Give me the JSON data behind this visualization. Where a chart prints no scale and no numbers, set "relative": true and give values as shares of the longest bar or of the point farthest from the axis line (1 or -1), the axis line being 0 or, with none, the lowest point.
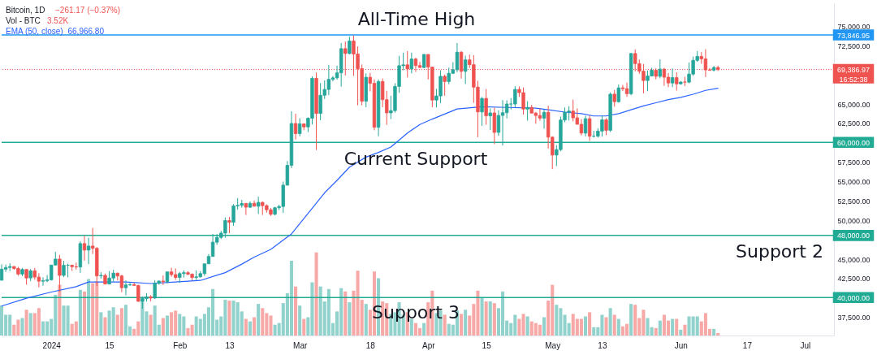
{
  "chart_data": [
    {
      "type": "candlestick",
      "title": "Bitcoin, 1D",
      "subtitle": "−261.17 (−0.37%)",
      "legend": "top left",
      "x": [
        "2023-12-20",
        "2023-12-21",
        "2023-12-22",
        "2023-12-23",
        "2023-12-24",
        "2023-12-25",
        "2023-12-26",
        "2023-12-27",
        "2023-12-28",
        "2023-12-29",
        "2023-12-30",
        "2023-12-31",
        "2024-01-01",
        "2024-01-02",
        "2024-01-03",
        "2024-01-04",
        "2024-01-05",
        "2024-01-06",
        "2024-01-07",
        "2024-01-08",
        "2024-01-09",
        "2024-01-10",
        "2024-01-11",
        "2024-01-12",
        "2024-01-13",
        "2024-01-14",
        "2024-01-15",
        "2024-01-16",
        "2024-01-17",
        "2024-01-18",
        "2024-01-19",
        "2024-01-20",
        "2024-01-21",
        "2024-01-22",
        "2024-01-23",
        "2024-01-24",
        "2024-01-25",
        "2024-01-26",
        "2024-01-27",
        "2024-01-28",
        "2024-01-29",
        "2024-01-30",
        "2024-01-31",
        "2024-02-01",
        "2024-02-02",
        "2024-02-03",
        "2024-02-04",
        "2024-02-05",
        "2024-02-06",
        "2024-02-07",
        "2024-02-08",
        "2024-02-09",
        "2024-02-10",
        "2024-02-11",
        "2024-02-12",
        "2024-02-13",
        "2024-02-14",
        "2024-02-15",
        "2024-02-16",
        "2024-02-17",
        "2024-02-18",
        "2024-02-19",
        "2024-02-20",
        "2024-02-21",
        "2024-02-22",
        "2024-02-23",
        "2024-02-24",
        "2024-02-25",
        "2024-02-26",
        "2024-02-27",
        "2024-02-28",
        "2024-02-29",
        "2024-03-01",
        "2024-03-02",
        "2024-03-03",
        "2024-03-04",
        "2024-03-05",
        "2024-03-06",
        "2024-03-07",
        "2024-03-08",
        "2024-03-09",
        "2024-03-10",
        "2024-03-11",
        "2024-03-12",
        "2024-03-13",
        "2024-03-14",
        "2024-03-15",
        "2024-03-16",
        "2024-03-17",
        "2024-03-18",
        "2024-03-19",
        "2024-03-20",
        "2024-03-21",
        "2024-03-22",
        "2024-03-23",
        "2024-03-24",
        "2024-03-25",
        "2024-03-26",
        "2024-03-27",
        "2024-03-28",
        "2024-03-29",
        "2024-03-30",
        "2024-03-31",
        "2024-04-01",
        "2024-04-02",
        "2024-04-03",
        "2024-04-04",
        "2024-04-05",
        "2024-04-06",
        "2024-04-07",
        "2024-04-08",
        "2024-04-09",
        "2024-04-10",
        "2024-04-11",
        "2024-04-12",
        "2024-04-13",
        "2024-04-14",
        "2024-04-15",
        "2024-04-16",
        "2024-04-17",
        "2024-04-18",
        "2024-04-19",
        "2024-04-20",
        "2024-04-21",
        "2024-04-22",
        "2024-04-23",
        "2024-04-24",
        "2024-04-25",
        "2024-04-26",
        "2024-04-27",
        "2024-04-28",
        "2024-04-29",
        "2024-04-30",
        "2024-05-01",
        "2024-05-02",
        "2024-05-03",
        "2024-05-04",
        "2024-05-05",
        "2024-05-06",
        "2024-05-07",
        "2024-05-08",
        "2024-05-09",
        "2024-05-10",
        "2024-05-11",
        "2024-05-12",
        "2024-05-13",
        "2024-05-14",
        "2024-05-15",
        "2024-05-16",
        "2024-05-17",
        "2024-05-18",
        "2024-05-19",
        "2024-05-20",
        "2024-05-21",
        "2024-05-22",
        "2024-05-23",
        "2024-05-24",
        "2024-05-25",
        "2024-05-26",
        "2024-05-27",
        "2024-05-28",
        "2024-05-29",
        "2024-05-30",
        "2024-05-31",
        "2024-06-01",
        "2024-06-02",
        "2024-06-03",
        "2024-06-04",
        "2024-06-05",
        "2024-06-06",
        "2024-06-07",
        "2024-06-08",
        "2024-06-09",
        "2024-06-10"
      ],
      "ohlc": [
        [
          42230,
          44280,
          42180,
          43650
        ],
        [
          43650,
          44240,
          43290,
          43870
        ],
        [
          43870,
          44400,
          43400,
          43990
        ],
        [
          43990,
          44040,
          43580,
          43740
        ],
        [
          43740,
          43950,
          42800,
          43020
        ],
        [
          43020,
          43800,
          42760,
          43610
        ],
        [
          43610,
          43650,
          41650,
          42520
        ],
        [
          42520,
          43680,
          42100,
          43440
        ],
        [
          43440,
          43800,
          42300,
          42630
        ],
        [
          42630,
          43130,
          41300,
          42100
        ],
        [
          42100,
          42600,
          41520,
          42160
        ],
        [
          42160,
          42900,
          41970,
          42280
        ],
        [
          42280,
          44190,
          42180,
          44180
        ],
        [
          44180,
          45900,
          44150,
          44950
        ],
        [
          44950,
          45500,
          40750,
          42850
        ],
        [
          42850,
          44730,
          42630,
          44150
        ],
        [
          44150,
          44350,
          42600,
          44160
        ],
        [
          44160,
          44230,
          43420,
          43970
        ],
        [
          43970,
          44500,
          43600,
          43930
        ],
        [
          43930,
          47250,
          43180,
          46950
        ],
        [
          46950,
          47950,
          44750,
          46110
        ],
        [
          46110,
          47700,
          44300,
          46630
        ],
        [
          46630,
          48970,
          45600,
          46340
        ],
        [
          46340,
          46500,
          41500,
          42780
        ],
        [
          42780,
          43260,
          42440,
          42850
        ],
        [
          42850,
          43080,
          41720,
          41730
        ],
        [
          41730,
          43400,
          41720,
          42510
        ],
        [
          42510,
          43580,
          42050,
          43140
        ],
        [
          43140,
          43200,
          42200,
          42780
        ],
        [
          42780,
          42930,
          40680,
          41260
        ],
        [
          41260,
          42200,
          40280,
          41620
        ],
        [
          41620,
          41870,
          41470,
          41670
        ],
        [
          41670,
          41880,
          41500,
          41550
        ],
        [
          41550,
          41650,
          39430,
          39510
        ],
        [
          39510,
          40130,
          38560,
          39850
        ],
        [
          39850,
          40560,
          39480,
          40080
        ],
        [
          40080,
          40290,
          39510,
          39930
        ],
        [
          39930,
          42210,
          39800,
          41820
        ],
        [
          41820,
          42200,
          41650,
          42120
        ],
        [
          42120,
          42840,
          41620,
          42030
        ],
        [
          42030,
          43310,
          41800,
          43300
        ],
        [
          43300,
          43840,
          42680,
          42950
        ],
        [
          42950,
          43750,
          42270,
          42580
        ],
        [
          42580,
          43290,
          41880,
          43080
        ],
        [
          43080,
          43500,
          42570,
          43200
        ],
        [
          43200,
          43380,
          42880,
          43000
        ],
        [
          43000,
          43120,
          42220,
          42580
        ],
        [
          42580,
          43500,
          42260,
          42660
        ],
        [
          42660,
          43400,
          42580,
          43080
        ],
        [
          43080,
          44380,
          42790,
          44340
        ],
        [
          44340,
          45600,
          44330,
          45290
        ],
        [
          45290,
          48200,
          45250,
          47130
        ],
        [
          47130,
          48170,
          46800,
          47750
        ],
        [
          47750,
          48590,
          47540,
          48300
        ],
        [
          48300,
          50330,
          47700,
          49920
        ],
        [
          49920,
          50370,
          48300,
          49700
        ],
        [
          49700,
          52040,
          49230,
          51800
        ],
        [
          51800,
          52820,
          51320,
          51880
        ],
        [
          51880,
          52580,
          51580,
          52120
        ],
        [
          52120,
          52200,
          50630,
          51640
        ],
        [
          51640,
          52370,
          51530,
          52140
        ],
        [
          52140,
          52490,
          51720,
          51770
        ],
        [
          51770,
          52990,
          50760,
          52260
        ],
        [
          52260,
          52370,
          50630,
          51840
        ],
        [
          51840,
          52000,
          50940,
          51310
        ],
        [
          51310,
          51550,
          50520,
          50730
        ],
        [
          50730,
          51690,
          50590,
          51570
        ],
        [
          51570,
          51950,
          51280,
          51730
        ],
        [
          51730,
          54940,
          50900,
          54480
        ],
        [
          54480,
          57590,
          54450,
          57040
        ],
        [
          57040,
          64000,
          56690,
          62430
        ],
        [
          62430,
          63680,
          60360,
          61130
        ],
        [
          61130,
          63110,
          60780,
          62390
        ],
        [
          62390,
          62430,
          61560,
          61990
        ],
        [
          61990,
          63230,
          61320,
          63110
        ],
        [
          63110,
          68500,
          62300,
          68250
        ],
        [
          68250,
          69000,
          59010,
          63720
        ],
        [
          63720,
          67640,
          62850,
          66070
        ],
        [
          66070,
          67990,
          65600,
          66820
        ],
        [
          66820,
          69990,
          66080,
          68120
        ],
        [
          68120,
          68540,
          67860,
          68310
        ],
        [
          68310,
          69890,
          68090,
          68960
        ],
        [
          68960,
          72800,
          67190,
          72080
        ],
        [
          72080,
          73000,
          68620,
          71450
        ],
        [
          71450,
          73650,
          71330,
          73070
        ],
        [
          73070,
          73780,
          68560,
          71390
        ],
        [
          71390,
          72360,
          64770,
          69500
        ],
        [
          69500,
          70040,
          64780,
          65300
        ],
        [
          65300,
          68900,
          64530,
          68390
        ],
        [
          68390,
          68960,
          66570,
          67610
        ],
        [
          67610,
          68120,
          61560,
          61940
        ],
        [
          61940,
          68100,
          60780,
          67840
        ],
        [
          67840,
          68240,
          64530,
          65500
        ],
        [
          65500,
          66650,
          62260,
          63800
        ],
        [
          63800,
          66000,
          63000,
          64090
        ],
        [
          64090,
          67620,
          63830,
          67210
        ],
        [
          67210,
          71150,
          66390,
          69880
        ],
        [
          69880,
          71560,
          69280,
          69990
        ],
        [
          69990,
          71770,
          68360,
          69460
        ],
        [
          69460,
          71550,
          68900,
          70740
        ],
        [
          70740,
          70910,
          69080,
          69890
        ],
        [
          69890,
          70360,
          69600,
          69650
        ],
        [
          69650,
          71370,
          69560,
          71330
        ],
        [
          71330,
          71340,
          68110,
          69700
        ],
        [
          69700,
          69710,
          64530,
          65450
        ],
        [
          65450,
          66910,
          64490,
          65980
        ],
        [
          65980,
          69290,
          65060,
          68510
        ],
        [
          68510,
          68730,
          66010,
          67840
        ],
        [
          67840,
          69630,
          67490,
          68900
        ],
        [
          68900,
          70330,
          68820,
          69360
        ],
        [
          69360,
          72800,
          69040,
          71620
        ],
        [
          71620,
          71760,
          68210,
          69150
        ],
        [
          69150,
          71170,
          67520,
          70630
        ],
        [
          70630,
          71310,
          69570,
          70010
        ],
        [
          70010,
          71230,
          65090,
          67120
        ],
        [
          67120,
          67930,
          60660,
          63920
        ],
        [
          63920,
          65840,
          62130,
          65660
        ],
        [
          65660,
          66870,
          62270,
          63420
        ],
        [
          63420,
          64370,
          61600,
          63790
        ],
        [
          63790,
          64480,
          59770,
          61280
        ],
        [
          61280,
          64130,
          60830,
          63470
        ],
        [
          63470,
          65450,
          59600,
          63820
        ],
        [
          63820,
          65420,
          63090,
          64940
        ],
        [
          64940,
          65700,
          64240,
          64940
        ],
        [
          64940,
          67230,
          64500,
          66820
        ],
        [
          66820,
          67200,
          65860,
          66410
        ],
        [
          66410,
          67080,
          63590,
          64290
        ],
        [
          64290,
          65300,
          62800,
          64500
        ],
        [
          64500,
          64840,
          63750,
          63770
        ],
        [
          63770,
          63920,
          62400,
          63460
        ],
        [
          63460,
          64370,
          62780,
          63120
        ],
        [
          63120,
          64230,
          61770,
          63870
        ],
        [
          63870,
          64730,
          59190,
          60670
        ],
        [
          60670,
          60780,
          56550,
          58360
        ],
        [
          58360,
          59630,
          56940,
          59060
        ],
        [
          59060,
          63320,
          58850,
          62880
        ],
        [
          62880,
          64490,
          62600,
          63890
        ],
        [
          63890,
          64650,
          62820,
          64030
        ],
        [
          64030,
          65500,
          62700,
          63160
        ],
        [
          63160,
          64390,
          62300,
          62330
        ],
        [
          62330,
          62990,
          60890,
          61190
        ],
        [
          61190,
          63420,
          60770,
          63050
        ],
        [
          63050,
          63470,
          60190,
          60790
        ],
        [
          60790,
          61490,
          60630,
          60800
        ],
        [
          60800,
          61820,
          60610,
          61450
        ],
        [
          61450,
          63450,
          60750,
          62900
        ],
        [
          62900,
          63100,
          60920,
          61550
        ],
        [
          61550,
          66440,
          61330,
          66210
        ],
        [
          66210,
          66750,
          64600,
          65240
        ],
        [
          65240,
          67450,
          65110,
          67020
        ],
        [
          67020,
          67400,
          66600,
          66920
        ],
        [
          66920,
          67700,
          65860,
          66270
        ],
        [
          66270,
          71520,
          66060,
          71450
        ],
        [
          71450,
          71980,
          69160,
          70150
        ],
        [
          70150,
          70670,
          68830,
          69170
        ],
        [
          69170,
          70100,
          66310,
          67970
        ],
        [
          67970,
          69250,
          66600,
          68550
        ],
        [
          68550,
          69610,
          68500,
          69290
        ],
        [
          69290,
          69560,
          68130,
          68510
        ],
        [
          68510,
          70690,
          68250,
          69440
        ],
        [
          69440,
          69590,
          67280,
          68400
        ],
        [
          68400,
          68940,
          67120,
          67650
        ],
        [
          67650,
          69500,
          67120,
          68350
        ],
        [
          68350,
          69040,
          66670,
          67540
        ],
        [
          67540,
          67900,
          67430,
          67770
        ],
        [
          67770,
          68460,
          67260,
          67760
        ],
        [
          67760,
          70290,
          67610,
          68800
        ],
        [
          68800,
          71060,
          68570,
          70570
        ],
        [
          70570,
          71760,
          70380,
          71080
        ],
        [
          71080,
          71630,
          70120,
          70760
        ],
        [
          70760,
          72000,
          68420,
          69340
        ],
        [
          69340,
          69580,
          69210,
          69310
        ],
        [
          69310,
          69850,
          69130,
          69650
        ],
        [
          69650,
          69880,
          69200,
          69386.97
        ]
      ],
      "colors": [
        "#26a69a",
        "#26a69a",
        "#26a69a",
        "#ef5350",
        "#ef5350",
        "#26a69a",
        "#ef5350",
        "#26a69a",
        "#ef5350",
        "#ef5350",
        "#26a69a",
        "#26a69a",
        "#26a69a",
        "#26a69a",
        "#ef5350",
        "#26a69a",
        "#26a69a",
        "#ef5350",
        "#ef5350",
        "#26a69a",
        "#ef5350",
        "#26a69a",
        "#ef5350",
        "#ef5350",
        "#26a69a",
        "#ef5350",
        "#26a69a",
        "#26a69a",
        "#ef5350",
        "#ef5350",
        "#26a69a",
        "#26a69a",
        "#ef5350",
        "#ef5350",
        "#26a69a",
        "#26a69a",
        "#ef5350",
        "#26a69a",
        "#26a69a",
        "#ef5350",
        "#26a69a",
        "#ef5350",
        "#ef5350",
        "#26a69a",
        "#26a69a",
        "#ef5350",
        "#ef5350",
        "#26a69a",
        "#26a69a",
        "#26a69a",
        "#26a69a",
        "#26a69a",
        "#26a69a",
        "#26a69a",
        "#26a69a",
        "#ef5350",
        "#26a69a",
        "#26a69a",
        "#26a69a",
        "#ef5350",
        "#26a69a",
        "#ef5350",
        "#26a69a",
        "#ef5350",
        "#ef5350",
        "#ef5350",
        "#26a69a",
        "#26a69a",
        "#26a69a",
        "#26a69a",
        "#26a69a",
        "#ef5350",
        "#26a69a",
        "#ef5350",
        "#26a69a",
        "#26a69a",
        "#ef5350",
        "#26a69a",
        "#26a69a",
        "#26a69a",
        "#26a69a",
        "#26a69a",
        "#26a69a",
        "#ef5350",
        "#26a69a",
        "#ef5350",
        "#ef5350",
        "#ef5350",
        "#26a69a",
        "#ef5350",
        "#ef5350",
        "#26a69a",
        "#ef5350",
        "#ef5350",
        "#26a69a",
        "#26a69a",
        "#26a69a",
        "#26a69a",
        "#ef5350",
        "#26a69a",
        "#ef5350",
        "#ef5350",
        "#26a69a",
        "#ef5350",
        "#ef5350",
        "#26a69a",
        "#26a69a",
        "#ef5350",
        "#26a69a",
        "#26a69a",
        "#26a69a",
        "#ef5350",
        "#26a69a",
        "#ef5350",
        "#ef5350",
        "#ef5350",
        "#26a69a",
        "#ef5350",
        "#26a69a",
        "#ef5350",
        "#26a69a",
        "#26a69a",
        "#26a69a",
        "#26a69a",
        "#26a69a",
        "#ef5350",
        "#ef5350",
        "#26a69a",
        "#ef5350",
        "#ef5350",
        "#ef5350",
        "#26a69a",
        "#ef5350",
        "#ef5350",
        "#26a69a",
        "#26a69a",
        "#26a69a",
        "#26a69a",
        "#ef5350",
        "#ef5350",
        "#ef5350",
        "#26a69a",
        "#ef5350",
        "#26a69a",
        "#26a69a",
        "#26a69a",
        "#ef5350",
        "#26a69a",
        "#ef5350",
        "#26a69a",
        "#ef5350",
        "#ef5350",
        "#26a69a",
        "#ef5350",
        "#ef5350",
        "#ef5350",
        "#26a69a",
        "#26a69a",
        "#ef5350",
        "#26a69a",
        "#ef5350",
        "#ef5350",
        "#26a69a",
        "#ef5350",
        "#26a69a",
        "#ef5350",
        "#26a69a",
        "#26a69a",
        "#26a69a",
        "#ef5350",
        "#ef5350",
        "#ef5350",
        "#26a69a",
        "#ef5350"
      ],
      "series": [
        {
          "type": "line",
          "name": "EMA (50, close)",
          "color": "#2962ff",
          "x": [
            "2023-12-20",
            "2023-12-26",
            "2024-01-01",
            "2024-01-07",
            "2024-01-10",
            "2024-01-13",
            "2024-01-19",
            "2024-01-25",
            "2024-01-31",
            "2024-02-06",
            "2024-02-12",
            "2024-02-16",
            "2024-02-19",
            "2024-02-23",
            "2024-02-26",
            "2024-02-28",
            "2024-03-04",
            "2024-03-07",
            "2024-03-10",
            "2024-03-13",
            "2024-03-17",
            "2024-03-20",
            "2024-03-23",
            "2024-03-27",
            "2024-03-30",
            "2024-04-02",
            "2024-04-08",
            "2024-04-14",
            "2024-04-20",
            "2024-04-27",
            "2024-04-30",
            "2024-05-04",
            "2024-05-08",
            "2024-05-11",
            "2024-05-14",
            "2024-05-17",
            "2024-05-20",
            "2024-05-23",
            "2024-05-26",
            "2024-05-29",
            "2024-06-01",
            "2024-06-04",
            "2024-06-07",
            "2024-06-10"
          ],
          "values": [
            38900,
            39900,
            40700,
            41400,
            42000,
            42000,
            42000,
            41800,
            42000,
            42200,
            43200,
            44300,
            45200,
            46200,
            47400,
            48200,
            51500,
            53500,
            55100,
            56800,
            58100,
            58700,
            59400,
            61200,
            62300,
            63000,
            64300,
            64600,
            64500,
            64400,
            64200,
            63900,
            63700,
            63400,
            63400,
            63700,
            64200,
            64700,
            65100,
            65500,
            65800,
            66200,
            66700,
            66966.8
          ]
        }
      ],
      "xlim": [
        "2023-12-20",
        "2024-07-08"
      ],
      "xticks": [
        {
          "value": "2024-01-01",
          "label": "2024"
        },
        {
          "value": "2024-01-15",
          "label": "15"
        },
        {
          "value": "2024-02-01",
          "label": "Feb"
        },
        {
          "value": "2024-02-13",
          "label": "13"
        },
        {
          "value": "2024-03-01",
          "label": "Mar"
        },
        {
          "value": "2024-03-18",
          "label": "18"
        },
        {
          "value": "2024-04-01",
          "label": "Apr"
        },
        {
          "value": "2024-04-15",
          "label": "15"
        },
        {
          "value": "2024-05-01",
          "label": "May"
        },
        {
          "value": "2024-05-13",
          "label": "13"
        },
        {
          "value": "2024-06-01",
          "label": "Jun"
        },
        {
          "value": "2024-06-17",
          "label": "17"
        },
        {
          "value": "2024-07-01",
          "label": "Jul"
        }
      ],
      "ylim": [
        35100,
        77930
      ],
      "yticks": [
        {
          "value": 37500,
          "label": "37,500.00"
        },
        {
          "value": 40000,
          "label": "40,000.00"
        },
        {
          "value": 42500,
          "label": "42,500.00"
        },
        {
          "value": 45000,
          "label": "45,000.00"
        },
        {
          "value": 48000,
          "label": "48,000.00"
        },
        {
          "value": 50000,
          "label": "50,000.00"
        },
        {
          "value": 52500,
          "label": "52,500.00"
        },
        {
          "value": 55000,
          "label": "55,000.00"
        },
        {
          "value": 57500,
          "label": "57,500.00"
        },
        {
          "value": 60000,
          "label": "60,000.00"
        },
        {
          "value": 62500,
          "label": "62,500.00"
        },
        {
          "value": 65000,
          "label": "65,000.00"
        },
        {
          "value": 69386.97,
          "label": "69,386.97"
        },
        {
          "value": 72500,
          "label": "72,500.00"
        },
        {
          "value": 73846.95,
          "label": "73,846.95"
        },
        {
          "value": 75000,
          "label": "75,000.00"
        }
      ],
      "ref_lines": [
        {
          "axis": "y",
          "value": 73846.95,
          "label": "All-Time High",
          "color": "#2196f3"
        },
        {
          "axis": "y",
          "value": 60000,
          "label": "Current Support",
          "color": "#22ab94"
        },
        {
          "axis": "y",
          "value": 48000,
          "label": "Support 2",
          "color": "#22ab94"
        },
        {
          "axis": "y",
          "value": 40000,
          "label": "Support 3",
          "color": "#22ab94"
        },
        {
          "axis": "y",
          "value": 69386.97,
          "color": "#ef5350",
          "line_style": "dotted"
        }
      ],
      "annotations": [
        "66,966.80",
        "16:52:38"
      ]
    },
    {
      "type": "bar",
      "relative": true,
      "title": "Vol - BTC",
      "tick_labels": false,
      "x": [
        "2023-12-20",
        "2023-12-21",
        "2023-12-22",
        "2023-12-23",
        "2023-12-24",
        "2023-12-25",
        "2023-12-26",
        "2023-12-27",
        "2023-12-28",
        "2023-12-29",
        "2023-12-30",
        "2023-12-31",
        "2024-01-01",
        "2024-01-02",
        "2024-01-03",
        "2024-01-04",
        "2024-01-05",
        "2024-01-06",
        "2024-01-07",
        "2024-01-08",
        "2024-01-09",
        "2024-01-10",
        "2024-01-11",
        "2024-01-12",
        "2024-01-13",
        "2024-01-14",
        "2024-01-15",
        "2024-01-16",
        "2024-01-17",
        "2024-01-18",
        "2024-01-19",
        "2024-01-20",
        "2024-01-21",
        "2024-01-22",
        "2024-01-23",
        "2024-01-24",
        "2024-01-25",
        "2024-01-26",
        "2024-01-27",
        "2024-01-28",
        "2024-01-29",
        "2024-01-30",
        "2024-01-31",
        "2024-02-01",
        "2024-02-02",
        "2024-02-03",
        "2024-02-04",
        "2024-02-05",
        "2024-02-06",
        "2024-02-07",
        "2024-02-08",
        "2024-02-09",
        "2024-02-10",
        "2024-02-11",
        "2024-02-12",
        "2024-02-13",
        "2024-02-14",
        "2024-02-15",
        "2024-02-16",
        "2024-02-17",
        "2024-02-18",
        "2024-02-19",
        "2024-02-20",
        "2024-02-21",
        "2024-02-22",
        "2024-02-23",
        "2024-02-24",
        "2024-02-25",
        "2024-02-26",
        "2024-02-27",
        "2024-02-28",
        "2024-02-29",
        "2024-03-01",
        "2024-03-02",
        "2024-03-03",
        "2024-03-04",
        "2024-03-05",
        "2024-03-06",
        "2024-03-07",
        "2024-03-08",
        "2024-03-09",
        "2024-03-10",
        "2024-03-11",
        "2024-03-12",
        "2024-03-13",
        "2024-03-14",
        "2024-03-15",
        "2024-03-16",
        "2024-03-17",
        "2024-03-18",
        "2024-03-19",
        "2024-03-20",
        "2024-03-21",
        "2024-03-22",
        "2024-03-23",
        "2024-03-24",
        "2024-03-25",
        "2024-03-26",
        "2024-03-27",
        "2024-03-28",
        "2024-03-29",
        "2024-03-30",
        "2024-03-31",
        "2024-04-01",
        "2024-04-02",
        "2024-04-03",
        "2024-04-04",
        "2024-04-05",
        "2024-04-06",
        "2024-04-07",
        "2024-04-08",
        "2024-04-09",
        "2024-04-10",
        "2024-04-11",
        "2024-04-12",
        "2024-04-13",
        "2024-04-14",
        "2024-04-15",
        "2024-04-16",
        "2024-04-17",
        "2024-04-18",
        "2024-04-19",
        "2024-04-20",
        "2024-04-21",
        "2024-04-22",
        "2024-04-23",
        "2024-04-24",
        "2024-04-25",
        "2024-04-26",
        "2024-04-27",
        "2024-04-28",
        "2024-04-29",
        "2024-04-30",
        "2024-05-01",
        "2024-05-02",
        "2024-05-03",
        "2024-05-04",
        "2024-05-05",
        "2024-05-06",
        "2024-05-07",
        "2024-05-08",
        "2024-05-09",
        "2024-05-10",
        "2024-05-11",
        "2024-05-12",
        "2024-05-13",
        "2024-05-14",
        "2024-05-15",
        "2024-05-16",
        "2024-05-17",
        "2024-05-18",
        "2024-05-19",
        "2024-05-20",
        "2024-05-21",
        "2024-05-22",
        "2024-05-23",
        "2024-05-24",
        "2024-05-25",
        "2024-05-26",
        "2024-05-27",
        "2024-05-28",
        "2024-05-29",
        "2024-05-30",
        "2024-05-31",
        "2024-06-01",
        "2024-06-02",
        "2024-06-03",
        "2024-06-04",
        "2024-06-05",
        "2024-06-06",
        "2024-06-07",
        "2024-06-08",
        "2024-06-09",
        "2024-06-10"
      ],
      "values": [
        0.36,
        0.25,
        0.25,
        0.13,
        0.19,
        0.21,
        0.31,
        0.27,
        0.27,
        0.33,
        0.17,
        0.17,
        0.2,
        0.49,
        0.61,
        0.36,
        0.36,
        0.14,
        0.17,
        0.55,
        0.53,
        0.68,
        0.63,
        0.65,
        0.28,
        0.22,
        0.3,
        0.34,
        0.25,
        0.33,
        0.37,
        0.11,
        0.08,
        0.17,
        0.46,
        0.29,
        0.25,
        0.36,
        0.13,
        0.21,
        0.24,
        0.28,
        0.3,
        0.26,
        0.23,
        0.09,
        0.13,
        0.23,
        0.2,
        0.26,
        0.34,
        0.56,
        0.19,
        0.23,
        0.43,
        0.42,
        0.42,
        0.4,
        0.29,
        0.2,
        0.17,
        0.22,
        0.38,
        0.33,
        0.27,
        0.24,
        0.13,
        0.15,
        0.39,
        0.51,
        0.9,
        0.59,
        0.36,
        0.2,
        0.22,
        0.64,
        1.0,
        0.59,
        0.41,
        0.56,
        0.15,
        0.29,
        0.57,
        0.53,
        0.4,
        0.54,
        0.78,
        0.43,
        0.38,
        0.31,
        0.77,
        0.69,
        0.41,
        0.39,
        0.26,
        0.28,
        0.4,
        0.25,
        0.28,
        0.2,
        0.15,
        0.09,
        0.15,
        0.4,
        0.54,
        0.27,
        0.3,
        0.25,
        0.14,
        0.13,
        0.3,
        0.26,
        0.31,
        0.24,
        0.38,
        0.54,
        0.46,
        0.41,
        0.41,
        0.39,
        0.33,
        0.53,
        0.18,
        0.15,
        0.25,
        0.2,
        0.26,
        0.23,
        0.17,
        0.15,
        0.13,
        0.22,
        0.42,
        0.61,
        0.37,
        0.33,
        0.25,
        0.15,
        0.26,
        0.2,
        0.2,
        0.23,
        0.28,
        0.1,
        0.1,
        0.25,
        0.22,
        0.33,
        0.25,
        0.2,
        0.11,
        0.14,
        0.38,
        0.37,
        0.21,
        0.31,
        0.21,
        0.1,
        0.09,
        0.18,
        0.25,
        0.18,
        0.2,
        0.2,
        0.07,
        0.13,
        0.23,
        0.23,
        0.23,
        0.17,
        0.27,
        0.08,
        0.08,
        0.03
      ],
      "colors": [
        "#92d2cc",
        "#92d2cc",
        "#92d2cc",
        "#f7a9a7",
        "#f7a9a7",
        "#92d2cc",
        "#f7a9a7",
        "#92d2cc",
        "#f7a9a7",
        "#f7a9a7",
        "#92d2cc",
        "#92d2cc",
        "#92d2cc",
        "#92d2cc",
        "#f7a9a7",
        "#92d2cc",
        "#92d2cc",
        "#f7a9a7",
        "#f7a9a7",
        "#92d2cc",
        "#f7a9a7",
        "#92d2cc",
        "#f7a9a7",
        "#f7a9a7",
        "#92d2cc",
        "#f7a9a7",
        "#92d2cc",
        "#92d2cc",
        "#f7a9a7",
        "#f7a9a7",
        "#92d2cc",
        "#92d2cc",
        "#f7a9a7",
        "#f7a9a7",
        "#92d2cc",
        "#92d2cc",
        "#f7a9a7",
        "#92d2cc",
        "#92d2cc",
        "#f7a9a7",
        "#92d2cc",
        "#f7a9a7",
        "#f7a9a7",
        "#92d2cc",
        "#92d2cc",
        "#f7a9a7",
        "#f7a9a7",
        "#92d2cc",
        "#92d2cc",
        "#92d2cc",
        "#92d2cc",
        "#92d2cc",
        "#92d2cc",
        "#92d2cc",
        "#92d2cc",
        "#f7a9a7",
        "#92d2cc",
        "#92d2cc",
        "#92d2cc",
        "#f7a9a7",
        "#92d2cc",
        "#f7a9a7",
        "#92d2cc",
        "#f7a9a7",
        "#f7a9a7",
        "#f7a9a7",
        "#92d2cc",
        "#92d2cc",
        "#92d2cc",
        "#92d2cc",
        "#92d2cc",
        "#f7a9a7",
        "#92d2cc",
        "#f7a9a7",
        "#92d2cc",
        "#92d2cc",
        "#f7a9a7",
        "#92d2cc",
        "#92d2cc",
        "#92d2cc",
        "#92d2cc",
        "#92d2cc",
        "#92d2cc",
        "#f7a9a7",
        "#92d2cc",
        "#f7a9a7",
        "#f7a9a7",
        "#f7a9a7",
        "#92d2cc",
        "#f7a9a7",
        "#f7a9a7",
        "#92d2cc",
        "#f7a9a7",
        "#f7a9a7",
        "#92d2cc",
        "#92d2cc",
        "#92d2cc",
        "#92d2cc",
        "#f7a9a7",
        "#92d2cc",
        "#f7a9a7",
        "#f7a9a7",
        "#92d2cc",
        "#f7a9a7",
        "#f7a9a7",
        "#92d2cc",
        "#92d2cc",
        "#f7a9a7",
        "#92d2cc",
        "#92d2cc",
        "#92d2cc",
        "#f7a9a7",
        "#92d2cc",
        "#f7a9a7",
        "#f7a9a7",
        "#f7a9a7",
        "#92d2cc",
        "#f7a9a7",
        "#92d2cc",
        "#f7a9a7",
        "#92d2cc",
        "#92d2cc",
        "#92d2cc",
        "#92d2cc",
        "#92d2cc",
        "#f7a9a7",
        "#f7a9a7",
        "#92d2cc",
        "#f7a9a7",
        "#f7a9a7",
        "#f7a9a7",
        "#92d2cc",
        "#f7a9a7",
        "#f7a9a7",
        "#92d2cc",
        "#92d2cc",
        "#92d2cc",
        "#92d2cc",
        "#f7a9a7",
        "#f7a9a7",
        "#f7a9a7",
        "#92d2cc",
        "#f7a9a7",
        "#92d2cc",
        "#92d2cc",
        "#92d2cc",
        "#f7a9a7",
        "#92d2cc",
        "#f7a9a7",
        "#92d2cc",
        "#f7a9a7",
        "#f7a9a7",
        "#92d2cc",
        "#f7a9a7",
        "#f7a9a7",
        "#f7a9a7",
        "#92d2cc",
        "#92d2cc",
        "#f7a9a7",
        "#92d2cc",
        "#f7a9a7",
        "#f7a9a7",
        "#92d2cc",
        "#f7a9a7",
        "#92d2cc",
        "#f7a9a7",
        "#92d2cc",
        "#92d2cc",
        "#92d2cc",
        "#f7a9a7",
        "#f7a9a7",
        "#f7a9a7",
        "#92d2cc",
        "#f7a9a7"
      ],
      "xlim": [
        "2023-12-20",
        "2024-07-08"
      ],
      "annotations": [
        "3.52K"
      ]
    }
  ]
}
